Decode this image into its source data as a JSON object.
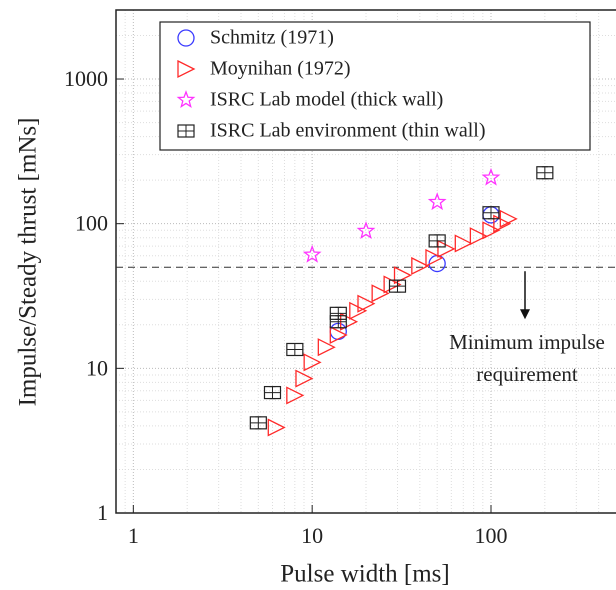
{
  "chart_data": {
    "type": "scatter",
    "xlabel": "Pulse width [ms]",
    "ylabel": "Impulse/Steady thrust [mNs]",
    "xscale": "log",
    "yscale": "log",
    "xlim": [
      0.8,
      500
    ],
    "ylim": [
      1,
      3000
    ],
    "xticks": [
      1,
      10,
      100
    ],
    "yticks": [
      1,
      10,
      100,
      1000
    ],
    "grid": true,
    "legend": "upper right",
    "series": [
      {
        "name": "Schmitz (1971)",
        "color": "#3a3aff",
        "marker": "circle",
        "x": [
          14,
          50,
          100
        ],
        "values": [
          18,
          53,
          115
        ]
      },
      {
        "name": "Moynihan (1972)",
        "color": "#ff2a2a",
        "marker": "triangle",
        "x": [
          6.3,
          8,
          9,
          10,
          12,
          14,
          16,
          18,
          20,
          24,
          28,
          32,
          40,
          48,
          56,
          70,
          85,
          100,
          115,
          125
        ],
        "values": [
          3.9,
          6.5,
          8.5,
          11,
          14,
          17,
          21,
          25,
          28,
          33,
          38,
          44,
          51,
          58,
          67,
          73,
          82,
          90,
          100,
          108
        ]
      },
      {
        "name": "ISRC Lab model (thick wall)",
        "color": "#ff33ff",
        "marker": "star",
        "x": [
          10,
          20,
          50,
          100
        ],
        "values": [
          61,
          89,
          141,
          208
        ]
      },
      {
        "name": "ISRC Lab environment (thin wall)",
        "color": "#222222",
        "marker": "square",
        "x": [
          5,
          6,
          8,
          14,
          14,
          30,
          50,
          100,
          200
        ],
        "values": [
          4.2,
          6.8,
          13.5,
          21,
          24,
          37,
          76,
          119,
          225
        ]
      }
    ],
    "hline": 50,
    "annotation": [
      "Minimum impulse",
      "requirement"
    ]
  }
}
